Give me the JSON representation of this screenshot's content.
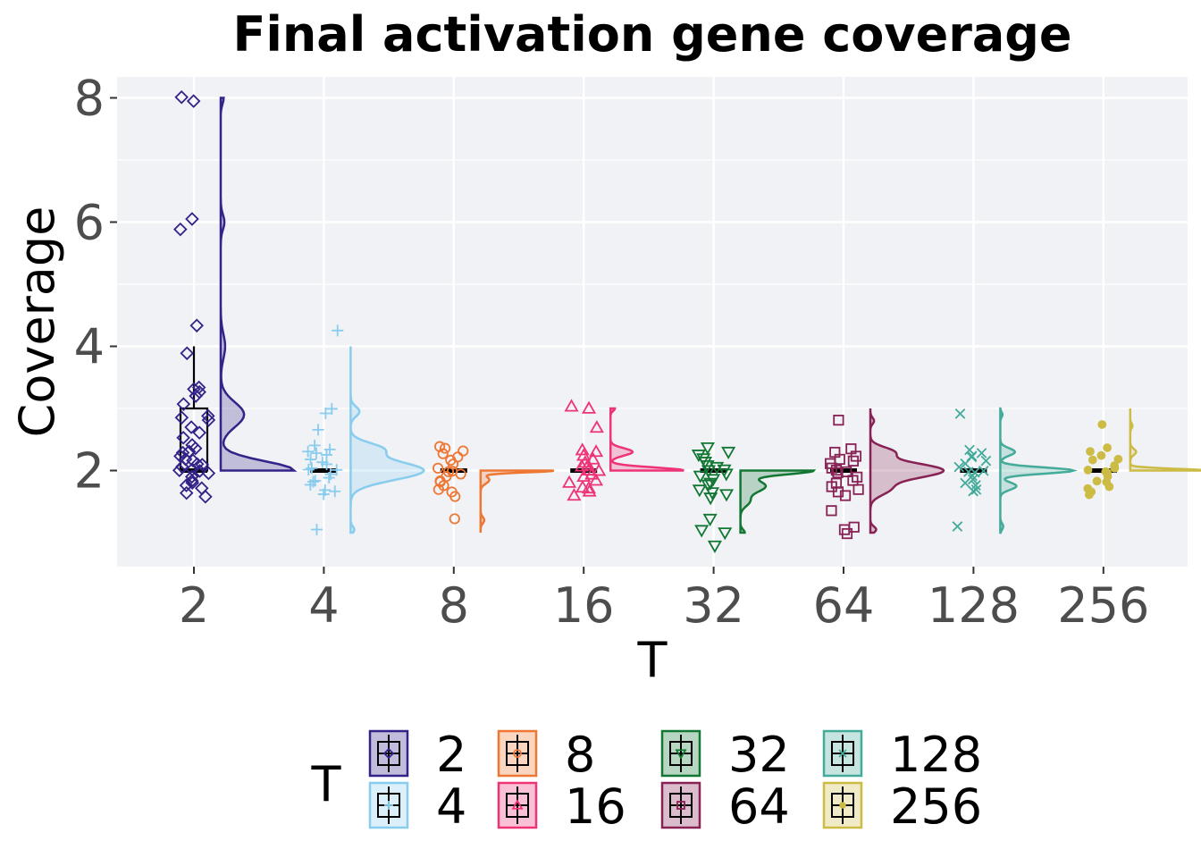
{
  "chart_data": {
    "type": "raincloud",
    "title": "Final activation gene coverage",
    "xlabel": "T",
    "ylabel": "Coverage",
    "ylim": [
      0.4,
      8.3
    ],
    "yticks": [
      2,
      4,
      6,
      8
    ],
    "categories": [
      "2",
      "4",
      "8",
      "16",
      "32",
      "64",
      "128",
      "256"
    ],
    "grid": true,
    "legend": {
      "title": "T",
      "placement": "bottom"
    },
    "series": [
      {
        "name": "2",
        "color": "#332288",
        "marker": "diamond",
        "box": {
          "q1": 2.0,
          "median": 2.0,
          "q3": 3.0,
          "whisker_low": 2.0,
          "whisker_high": 4.0
        },
        "points": [
          7.95,
          8.0,
          6.05,
          5.9,
          4.33,
          3.9,
          3.32,
          3.3,
          3.25,
          3.2,
          3.05,
          2.9,
          2.85,
          2.8,
          2.7,
          2.6,
          2.55,
          2.4,
          2.35,
          2.3,
          2.3,
          2.25,
          2.2,
          2.15,
          2.1,
          2.1,
          2.05,
          2.0,
          2.0,
          2.0,
          1.95,
          1.9,
          1.85,
          1.8,
          1.75,
          1.7,
          1.65,
          1.6
        ]
      },
      {
        "name": "4",
        "color": "#88CCEE",
        "marker": "plus",
        "box": {
          "q1": 2.0,
          "median": 2.0,
          "q3": 2.0,
          "whisker_low": 2.0,
          "whisker_high": 2.0
        },
        "points": [
          4.27,
          3.0,
          2.9,
          2.65,
          2.4,
          2.35,
          2.3,
          2.3,
          2.25,
          2.2,
          2.15,
          2.1,
          2.05,
          2.0,
          2.0,
          1.95,
          1.9,
          1.85,
          1.8,
          1.75,
          1.7,
          1.65,
          1.6,
          1.05
        ]
      },
      {
        "name": "8",
        "color": "#EE7733",
        "marker": "circle",
        "box": {
          "q1": 2.0,
          "median": 2.0,
          "q3": 2.0,
          "whisker_low": 2.0,
          "whisker_high": 2.0
        },
        "points": [
          2.38,
          2.35,
          2.3,
          2.25,
          2.2,
          2.15,
          2.1,
          2.05,
          2.0,
          2.0,
          1.95,
          1.9,
          1.85,
          1.8,
          1.75,
          1.7,
          1.65,
          1.6,
          1.22
        ]
      },
      {
        "name": "16",
        "color": "#EE3377",
        "marker": "triangle-up",
        "box": {
          "q1": 2.0,
          "median": 2.0,
          "q3": 2.0,
          "whisker_low": 2.0,
          "whisker_high": 2.0
        },
        "points": [
          3.05,
          3.0,
          2.7,
          2.35,
          2.3,
          2.25,
          2.2,
          2.15,
          2.1,
          2.05,
          2.0,
          2.0,
          1.95,
          1.9,
          1.85,
          1.8,
          1.75,
          1.7,
          1.65,
          1.6
        ]
      },
      {
        "name": "32",
        "color": "#117733",
        "marker": "triangle-down",
        "box": {
          "q1": 2.0,
          "median": 2.0,
          "q3": 2.0,
          "whisker_low": 2.0,
          "whisker_high": 2.0
        },
        "points": [
          2.35,
          2.3,
          2.25,
          2.2,
          2.15,
          2.1,
          2.05,
          2.0,
          2.0,
          1.95,
          1.9,
          1.85,
          1.8,
          1.75,
          1.7,
          1.65,
          1.6,
          1.55,
          1.2,
          1.05,
          0.98,
          0.78
        ]
      },
      {
        "name": "64",
        "color": "#882255",
        "marker": "square",
        "box": {
          "q1": 2.0,
          "median": 2.0,
          "q3": 2.0,
          "whisker_low": 2.0,
          "whisker_high": 2.0
        },
        "points": [
          2.8,
          2.35,
          2.3,
          2.25,
          2.2,
          2.15,
          2.1,
          2.05,
          2.0,
          2.0,
          1.95,
          1.9,
          1.85,
          1.8,
          1.75,
          1.7,
          1.65,
          1.6,
          1.35,
          1.1,
          1.05,
          0.98
        ]
      },
      {
        "name": "128",
        "color": "#44AA99",
        "marker": "cross",
        "box": {
          "q1": 2.0,
          "median": 2.0,
          "q3": 2.0,
          "whisker_low": 2.0,
          "whisker_high": 2.0
        },
        "points": [
          2.9,
          2.35,
          2.3,
          2.25,
          2.2,
          2.15,
          2.1,
          2.05,
          2.0,
          2.0,
          1.95,
          1.9,
          1.85,
          1.8,
          1.75,
          1.7,
          1.65,
          1.1
        ]
      },
      {
        "name": "256",
        "color": "#CCBB44",
        "marker": "dot",
        "box": {
          "q1": 2.0,
          "median": 2.0,
          "q3": 2.0,
          "whisker_low": 2.0,
          "whisker_high": 2.0
        },
        "points": [
          2.72,
          2.35,
          2.3,
          2.25,
          2.2,
          2.15,
          2.1,
          2.05,
          2.0,
          2.0,
          1.95,
          1.9,
          1.85,
          1.8,
          1.75,
          1.7,
          1.65,
          1.6
        ]
      }
    ],
    "densities": [
      {
        "name": "2",
        "range": [
          2.0,
          8.0
        ],
        "peaks": [
          [
            2.0,
            1.0,
            0.15
          ],
          [
            2.9,
            0.32,
            0.2
          ],
          [
            4.0,
            0.06,
            0.2
          ],
          [
            6.0,
            0.05,
            0.12
          ],
          [
            8.0,
            0.04,
            0.1
          ]
        ]
      },
      {
        "name": "4",
        "range": [
          1.0,
          4.0
        ],
        "peaks": [
          [
            2.0,
            1.0,
            0.15
          ],
          [
            2.35,
            0.4,
            0.1
          ],
          [
            2.95,
            0.12,
            0.08
          ],
          [
            1.05,
            0.05,
            0.05
          ]
        ]
      },
      {
        "name": "8",
        "range": [
          1.0,
          2.0
        ],
        "peaks": [
          [
            2.0,
            1.0,
            0.03
          ],
          [
            1.85,
            0.12,
            0.06
          ],
          [
            1.2,
            0.05,
            0.05
          ]
        ]
      },
      {
        "name": "16",
        "range": [
          2.0,
          3.0
        ],
        "peaks": [
          [
            2.0,
            1.0,
            0.05
          ],
          [
            2.3,
            0.3,
            0.06
          ],
          [
            3.0,
            0.06,
            0.04
          ]
        ]
      },
      {
        "name": "32",
        "range": [
          1.0,
          2.0
        ],
        "peaks": [
          [
            2.0,
            1.0,
            0.06
          ],
          [
            1.75,
            0.35,
            0.1
          ],
          [
            1.5,
            0.12,
            0.08
          ],
          [
            1.0,
            0.06,
            0.05
          ]
        ]
      },
      {
        "name": "64",
        "range": [
          1.0,
          3.0
        ],
        "peaks": [
          [
            2.0,
            1.0,
            0.12
          ],
          [
            2.3,
            0.3,
            0.08
          ],
          [
            1.7,
            0.25,
            0.1
          ],
          [
            1.05,
            0.08,
            0.05
          ],
          [
            2.8,
            0.05,
            0.05
          ]
        ]
      },
      {
        "name": "128",
        "range": [
          1.0,
          3.0
        ],
        "peaks": [
          [
            2.0,
            1.0,
            0.05
          ],
          [
            2.3,
            0.2,
            0.06
          ],
          [
            1.75,
            0.22,
            0.06
          ],
          [
            1.1,
            0.04,
            0.05
          ],
          [
            2.9,
            0.03,
            0.04
          ]
        ]
      },
      {
        "name": "256",
        "range": [
          2.0,
          3.0
        ],
        "peaks": [
          [
            2.0,
            1.0,
            0.03
          ],
          [
            2.3,
            0.08,
            0.05
          ],
          [
            2.72,
            0.03,
            0.04
          ]
        ]
      }
    ]
  }
}
